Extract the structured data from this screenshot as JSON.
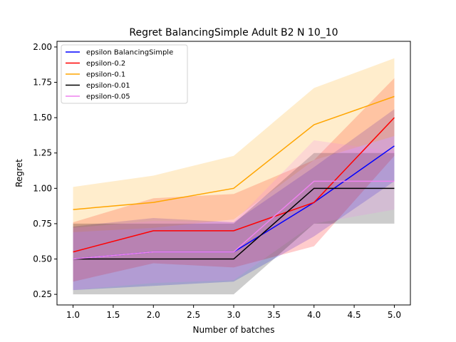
{
  "chart_data": {
    "type": "line",
    "title": "Regret BalancingSimple Adult B2 N 10_10",
    "xlabel": "Number of batches",
    "ylabel": "Regret",
    "xlim": [
      0.8,
      5.2
    ],
    "ylim": [
      0.175,
      2.04
    ],
    "x": [
      1.0,
      2.0,
      3.0,
      4.0,
      5.0
    ],
    "xticks": [
      1.0,
      1.5,
      2.0,
      2.5,
      3.0,
      3.5,
      4.0,
      4.5,
      5.0
    ],
    "xtick_labels": [
      "1.0",
      "1.5",
      "2.0",
      "2.5",
      "3.0",
      "3.5",
      "4.0",
      "4.5",
      "5.0"
    ],
    "yticks": [
      0.25,
      0.5,
      0.75,
      1.0,
      1.25,
      1.5,
      1.75,
      2.0
    ],
    "ytick_labels": [
      "0.25",
      "0.50",
      "0.75",
      "1.00",
      "1.25",
      "1.50",
      "1.75",
      "2.00"
    ],
    "grid": false,
    "legend_position": "top-left",
    "series": [
      {
        "name": "epsilon BalancingSimple",
        "color": "#0000ff",
        "values": [
          0.5,
          0.55,
          0.55,
          0.9,
          1.3
        ],
        "lower": [
          0.28,
          0.31,
          0.34,
          0.66,
          1.05
        ],
        "upper": [
          0.73,
          0.79,
          0.76,
          1.15,
          1.56
        ]
      },
      {
        "name": "epsilon-0.2",
        "color": "#ff0000",
        "values": [
          0.55,
          0.7,
          0.7,
          0.9,
          1.5
        ],
        "lower": [
          0.34,
          0.47,
          0.44,
          0.59,
          1.23
        ],
        "upper": [
          0.76,
          0.93,
          0.96,
          1.2,
          1.78
        ]
      },
      {
        "name": "epsilon-0.1",
        "color": "#ffa500",
        "values": [
          0.85,
          0.9,
          1.0,
          1.45,
          1.65
        ],
        "lower": [
          0.69,
          0.72,
          0.78,
          1.2,
          1.37
        ],
        "upper": [
          1.01,
          1.09,
          1.23,
          1.71,
          1.92
        ]
      },
      {
        "name": "epsilon-0.01",
        "color": "#000000",
        "values": [
          0.5,
          0.5,
          0.5,
          1.0,
          1.0
        ],
        "lower": [
          0.25,
          0.25,
          0.25,
          0.75,
          0.75
        ],
        "upper": [
          0.75,
          0.75,
          0.75,
          1.25,
          1.25
        ]
      },
      {
        "name": "epsilon-0.05",
        "color": "#ee82ee",
        "values": [
          0.5,
          0.55,
          0.55,
          1.05,
          1.05
        ],
        "lower": [
          0.28,
          0.33,
          0.35,
          0.75,
          0.85
        ],
        "upper": [
          0.72,
          0.77,
          0.76,
          1.34,
          1.26
        ]
      }
    ]
  }
}
